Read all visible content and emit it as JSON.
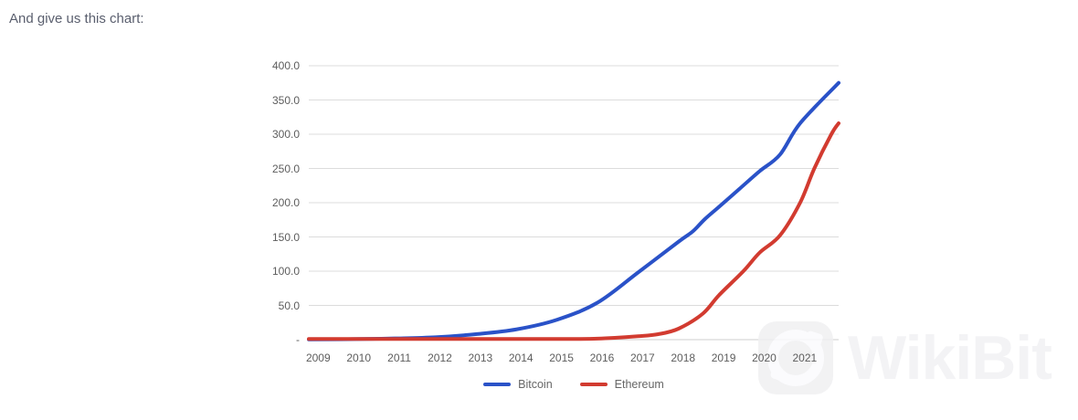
{
  "page": {
    "heading": "And give us this chart:"
  },
  "watermark": {
    "text": "WikiBit",
    "logo_icon": "wikibit-logo-icon"
  },
  "chart_data": {
    "type": "line",
    "title": "",
    "xlabel": "",
    "ylabel": "",
    "grid": "horizontal-only",
    "legend_position": "bottom-center",
    "xlim": [
      2008.88,
      2021.95
    ],
    "ylim": [
      0,
      400
    ],
    "x_ticks": [
      {
        "label": "2009",
        "value": 2009
      },
      {
        "label": "2010",
        "value": 2010
      },
      {
        "label": "2011",
        "value": 2011
      },
      {
        "label": "2012",
        "value": 2012
      },
      {
        "label": "2013",
        "value": 2013
      },
      {
        "label": "2014",
        "value": 2014
      },
      {
        "label": "2015",
        "value": 2015
      },
      {
        "label": "2016",
        "value": 2016
      },
      {
        "label": "2017",
        "value": 2017
      },
      {
        "label": "2018",
        "value": 2018
      },
      {
        "label": "2019",
        "value": 2019
      },
      {
        "label": "2020",
        "value": 2020
      },
      {
        "label": "2021",
        "value": 2021
      }
    ],
    "y_ticks": [
      {
        "label": "400.0",
        "value": 400
      },
      {
        "label": "350.0",
        "value": 350
      },
      {
        "label": "300.0",
        "value": 300
      },
      {
        "label": "250.0",
        "value": 250
      },
      {
        "label": "200.0",
        "value": 200
      },
      {
        "label": "150.0",
        "value": 150
      },
      {
        "label": "100.0",
        "value": 100
      },
      {
        "label": "50.0",
        "value": 50
      },
      {
        "label": "-",
        "value": 0
      }
    ],
    "gridline_color": "#dcdcdc",
    "axisline_color": "#cfcfcf",
    "series": [
      {
        "name": "Bitcoin",
        "color": "#2a52c8",
        "points": [
          [
            2008.88,
            0.3
          ],
          [
            2010,
            0.8
          ],
          [
            2011,
            1.8
          ],
          [
            2012,
            3.5
          ],
          [
            2013,
            8
          ],
          [
            2014,
            15
          ],
          [
            2015,
            29
          ],
          [
            2016,
            54
          ],
          [
            2017,
            98
          ],
          [
            2018,
            143
          ],
          [
            2018.35,
            158
          ],
          [
            2018.65,
            176
          ],
          [
            2019,
            194
          ],
          [
            2019.5,
            220
          ],
          [
            2020,
            246
          ],
          [
            2020.5,
            270
          ],
          [
            2021,
            316
          ],
          [
            2021.95,
            375
          ]
        ]
      },
      {
        "name": "Ethereum",
        "color": "#d23b30",
        "points": [
          [
            2008.88,
            1
          ],
          [
            2010,
            1
          ],
          [
            2011,
            1
          ],
          [
            2012,
            1
          ],
          [
            2013,
            1
          ],
          [
            2014,
            1
          ],
          [
            2015,
            1
          ],
          [
            2016,
            1.5
          ],
          [
            2017,
            5
          ],
          [
            2017.5,
            8
          ],
          [
            2018,
            16
          ],
          [
            2018.6,
            38
          ],
          [
            2019,
            65
          ],
          [
            2019.6,
            100
          ],
          [
            2020,
            127
          ],
          [
            2020.5,
            152
          ],
          [
            2021,
            200
          ],
          [
            2021.35,
            250
          ],
          [
            2021.77,
            300
          ],
          [
            2021.95,
            316
          ]
        ]
      }
    ]
  }
}
